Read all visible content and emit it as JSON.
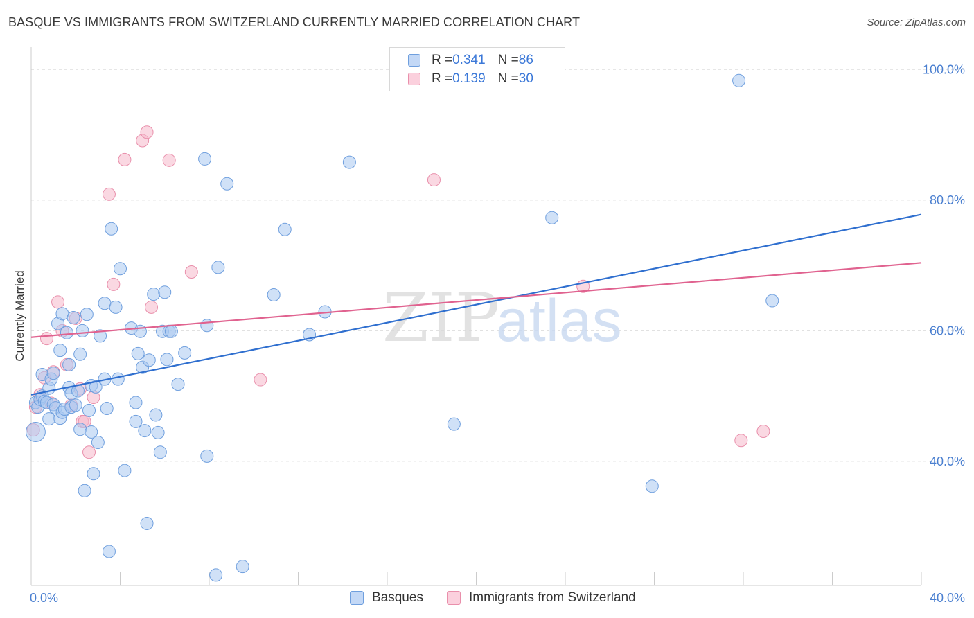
{
  "title": "BASQUE VS IMMIGRANTS FROM SWITZERLAND CURRENTLY MARRIED CORRELATION CHART",
  "source": "Source: ZipAtlas.com",
  "legend": {
    "rows": [
      {
        "r_label": "R = ",
        "r_value": "0.341",
        "n_label": "N = ",
        "n_value": "86"
      },
      {
        "r_label": "R = ",
        "r_value": "0.139",
        "n_label": "N = ",
        "n_value": "30"
      }
    ]
  },
  "watermark": {
    "zip": "ZIP",
    "atlas": "atlas"
  },
  "colors": {
    "blue_fill": "#aac8f0",
    "blue_stroke": "#6f9fde",
    "blue_line": "#2f6fcf",
    "pink_fill": "#f6b8cb",
    "pink_stroke": "#e98fab",
    "pink_line": "#e0628f",
    "grid": "#dddddd",
    "tick_text": "#4a7fd0"
  },
  "chart_data": {
    "type": "scatter",
    "xlabel": "",
    "ylabel": "Currently Married",
    "xlim": [
      0,
      40
    ],
    "ylim": [
      21,
      103
    ],
    "x_tick_labels": [
      "0.0%",
      "40.0%"
    ],
    "y_ticks": [
      40,
      60,
      80,
      100
    ],
    "y_tick_labels": [
      "40.0%",
      "60.0%",
      "80.0%",
      "100.0%"
    ],
    "grid": true,
    "legend_placement": "bottom",
    "series": [
      {
        "name": "Basques",
        "color": "#aac8f0",
        "trend": {
          "x": [
            0,
            40
          ],
          "y": [
            50.2,
            77.8
          ]
        },
        "points": [
          [
            0.2,
            44.5
          ],
          [
            0.2,
            49.0
          ],
          [
            0.3,
            48.3
          ],
          [
            0.4,
            49.5
          ],
          [
            0.5,
            50.0
          ],
          [
            0.5,
            53.3
          ],
          [
            0.6,
            49.2
          ],
          [
            0.7,
            49.0
          ],
          [
            0.8,
            46.5
          ],
          [
            0.8,
            51.2
          ],
          [
            0.9,
            52.6
          ],
          [
            1.0,
            48.7
          ],
          [
            1.0,
            53.5
          ],
          [
            1.1,
            48.2
          ],
          [
            1.2,
            61.1
          ],
          [
            1.3,
            57.0
          ],
          [
            1.3,
            46.6
          ],
          [
            1.4,
            62.6
          ],
          [
            1.4,
            47.5
          ],
          [
            1.5,
            48.0
          ],
          [
            1.6,
            59.7
          ],
          [
            1.7,
            54.8
          ],
          [
            1.7,
            51.3
          ],
          [
            1.8,
            48.3
          ],
          [
            1.8,
            50.4
          ],
          [
            1.9,
            62.0
          ],
          [
            2.0,
            48.6
          ],
          [
            2.1,
            50.8
          ],
          [
            2.2,
            56.4
          ],
          [
            2.2,
            44.9
          ],
          [
            2.3,
            60.0
          ],
          [
            2.4,
            35.5
          ],
          [
            2.5,
            62.5
          ],
          [
            2.6,
            47.8
          ],
          [
            2.7,
            44.5
          ],
          [
            2.7,
            51.6
          ],
          [
            2.8,
            38.1
          ],
          [
            2.9,
            51.4
          ],
          [
            3.0,
            42.9
          ],
          [
            3.1,
            59.2
          ],
          [
            3.3,
            64.2
          ],
          [
            3.3,
            52.6
          ],
          [
            3.4,
            48.1
          ],
          [
            3.5,
            26.2
          ],
          [
            3.6,
            75.6
          ],
          [
            3.8,
            63.6
          ],
          [
            3.9,
            52.6
          ],
          [
            4.0,
            69.5
          ],
          [
            4.2,
            38.6
          ],
          [
            4.5,
            60.4
          ],
          [
            4.7,
            49.0
          ],
          [
            4.7,
            46.1
          ],
          [
            4.8,
            56.5
          ],
          [
            4.9,
            59.9
          ],
          [
            5.0,
            54.4
          ],
          [
            5.1,
            44.7
          ],
          [
            5.2,
            30.5
          ],
          [
            5.3,
            55.5
          ],
          [
            5.5,
            65.6
          ],
          [
            5.6,
            47.1
          ],
          [
            5.7,
            44.4
          ],
          [
            5.8,
            41.4
          ],
          [
            5.9,
            59.9
          ],
          [
            6.0,
            65.9
          ],
          [
            6.1,
            55.6
          ],
          [
            6.2,
            59.9
          ],
          [
            6.3,
            59.9
          ],
          [
            6.6,
            51.8
          ],
          [
            6.9,
            56.6
          ],
          [
            7.8,
            86.3
          ],
          [
            7.9,
            40.8
          ],
          [
            7.9,
            60.8
          ],
          [
            8.3,
            22.6
          ],
          [
            8.4,
            69.7
          ],
          [
            8.8,
            82.5
          ],
          [
            9.5,
            23.9
          ],
          [
            10.9,
            65.5
          ],
          [
            11.4,
            75.5
          ],
          [
            12.5,
            59.4
          ],
          [
            13.2,
            62.9
          ],
          [
            14.3,
            85.8
          ],
          [
            19.0,
            45.7
          ],
          [
            23.4,
            77.3
          ],
          [
            27.9,
            36.2
          ],
          [
            31.8,
            98.3
          ],
          [
            33.3,
            64.6
          ]
        ]
      },
      {
        "name": "Immigrants from Switzerland",
        "color": "#f6b8cb",
        "trend": {
          "x": [
            0,
            40
          ],
          "y": [
            59.0,
            70.4
          ]
        },
        "points": [
          [
            0.1,
            44.8
          ],
          [
            0.2,
            48.3
          ],
          [
            0.4,
            50.2
          ],
          [
            0.6,
            52.8
          ],
          [
            0.7,
            58.8
          ],
          [
            0.9,
            48.9
          ],
          [
            1.0,
            53.7
          ],
          [
            1.2,
            64.4
          ],
          [
            1.4,
            60.0
          ],
          [
            1.6,
            54.8
          ],
          [
            1.8,
            48.6
          ],
          [
            2.0,
            61.9
          ],
          [
            2.2,
            51.1
          ],
          [
            2.3,
            46.1
          ],
          [
            2.4,
            46.1
          ],
          [
            2.6,
            41.4
          ],
          [
            2.8,
            49.8
          ],
          [
            3.5,
            80.9
          ],
          [
            3.7,
            67.1
          ],
          [
            4.2,
            86.2
          ],
          [
            5.0,
            89.1
          ],
          [
            5.2,
            90.4
          ],
          [
            5.4,
            63.6
          ],
          [
            6.2,
            86.1
          ],
          [
            7.2,
            69.0
          ],
          [
            10.3,
            52.5
          ],
          [
            18.1,
            83.1
          ],
          [
            24.8,
            66.8
          ],
          [
            31.9,
            43.2
          ],
          [
            32.9,
            44.6
          ]
        ]
      }
    ]
  }
}
